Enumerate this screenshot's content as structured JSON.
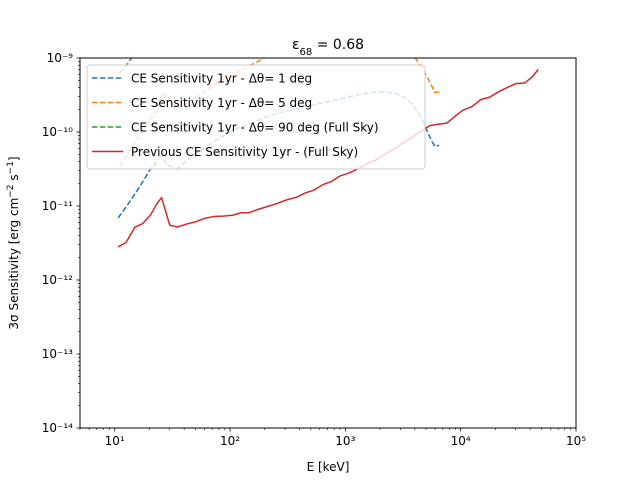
{
  "chart_data": {
    "type": "line",
    "title": "ε68 = 0.68",
    "xlabel": "E [keV]",
    "ylabel": "3σ Sensitivity [erg cm⁻² s⁻¹]",
    "xscale": "log",
    "yscale": "log",
    "xlim": [
      5,
      100000
    ],
    "ylim": [
      1e-14,
      1e-09
    ],
    "x_ticks": [
      {
        "value": 10,
        "label": "10¹"
      },
      {
        "value": 100,
        "label": "10²"
      },
      {
        "value": 1000,
        "label": "10³"
      },
      {
        "value": 10000,
        "label": "10⁴"
      },
      {
        "value": 100000,
        "label": "10⁵"
      }
    ],
    "y_ticks": [
      {
        "value": 1e-14,
        "label": "10⁻¹⁴"
      },
      {
        "value": 1e-13,
        "label": "10⁻¹³"
      },
      {
        "value": 1e-12,
        "label": "10⁻¹²"
      },
      {
        "value": 1e-11,
        "label": "10⁻¹¹"
      },
      {
        "value": 1e-10,
        "label": "10⁻¹⁰"
      },
      {
        "value": 1e-09,
        "label": "10⁻⁹"
      }
    ],
    "grid": false,
    "legend_position": "top-left",
    "series": [
      {
        "name": "CE Sensitivity 1yr - Δθ= 1 deg",
        "color": "#1f77b4",
        "style": "dashed",
        "points": [
          [
            10.7,
            6.9e-12
          ],
          [
            13,
            1.05e-11
          ],
          [
            16,
            1.7e-11
          ],
          [
            20,
            3e-11
          ],
          [
            25,
            4.7e-11
          ],
          [
            29,
            3.5e-11
          ],
          [
            35,
            3.2e-11
          ],
          [
            45,
            4.4e-11
          ],
          [
            60,
            6.2e-11
          ],
          [
            80,
            8.2e-11
          ],
          [
            110,
            1.08e-10
          ],
          [
            150,
            1.3e-10
          ],
          [
            200,
            1.58e-10
          ],
          [
            300,
            1.9e-10
          ],
          [
            450,
            2.22e-10
          ],
          [
            650,
            2.5e-10
          ],
          [
            900,
            2.8e-10
          ],
          [
            1200,
            3.1e-10
          ],
          [
            1600,
            3.4e-10
          ],
          [
            2000,
            3.5e-10
          ],
          [
            2600,
            3.4e-10
          ],
          [
            3200,
            3e-10
          ],
          [
            3900,
            2.3e-10
          ],
          [
            4500,
            1.6e-10
          ],
          [
            5100,
            1.05e-10
          ],
          [
            5600,
            7.5e-11
          ],
          [
            6000,
            6.4e-11
          ],
          [
            6500,
            6.6e-11
          ]
        ]
      },
      {
        "name": "CE Sensitivity 1yr - Δθ= 5 deg",
        "color": "#ff7f0e",
        "style": "dashed",
        "points": [
          [
            11,
            3.4e-11
          ],
          [
            14,
            6e-11
          ],
          [
            18,
            1.1e-10
          ],
          [
            23,
            2e-10
          ],
          [
            26.5,
            3.4e-10
          ],
          [
            30,
            2.5e-10
          ],
          [
            38,
            2.2e-10
          ],
          [
            55,
            3.2e-10
          ],
          [
            80,
            4.8e-10
          ],
          [
            120,
            6.7e-10
          ],
          [
            170,
            8.8e-10
          ],
          [
            210,
            1.05e-09
          ]
        ],
        "points_right": [
          [
            4000,
            1.02e-09
          ],
          [
            4600,
            7.5e-10
          ],
          [
            5300,
            5e-10
          ],
          [
            6000,
            3.4e-10
          ],
          [
            6500,
            3.5e-10
          ]
        ]
      },
      {
        "name": "CE Sensitivity 1yr - Δθ= 90 deg (Full Sky)",
        "color": "#2ca02c",
        "style": "dashed",
        "points": [
          [
            11,
            6.2e-10
          ],
          [
            12.5,
            7.8e-10
          ],
          [
            14.2,
            1.03e-09
          ]
        ]
      },
      {
        "name": "Previous CE Sensitivity 1yr - (Full Sky)",
        "color": "#d62728",
        "style": "solid",
        "points": [
          [
            10.7,
            2.8e-12
          ],
          [
            12.5,
            3.2e-12
          ],
          [
            15,
            5.2e-12
          ],
          [
            17.5,
            5.8e-12
          ],
          [
            20.5,
            7.6e-12
          ],
          [
            23,
            1.05e-11
          ],
          [
            25.5,
            1.3e-11
          ],
          [
            30,
            5.5e-12
          ],
          [
            35,
            5.2e-12
          ],
          [
            42,
            5.7e-12
          ],
          [
            50,
            6.1e-12
          ],
          [
            60,
            6.8e-12
          ],
          [
            72,
            7.2e-12
          ],
          [
            87,
            7.3e-12
          ],
          [
            105,
            7.5e-12
          ],
          [
            125,
            8.1e-12
          ],
          [
            145,
            8.1e-12
          ],
          [
            175,
            9e-12
          ],
          [
            210,
            9.8e-12
          ],
          [
            260,
            1.09e-11
          ],
          [
            310,
            1.21e-11
          ],
          [
            380,
            1.32e-11
          ],
          [
            450,
            1.5e-11
          ],
          [
            540,
            1.65e-11
          ],
          [
            640,
            1.95e-11
          ],
          [
            760,
            2.15e-11
          ],
          [
            900,
            2.55e-11
          ],
          [
            1080,
            2.8e-11
          ],
          [
            1300,
            3.2e-11
          ],
          [
            1550,
            3.75e-11
          ],
          [
            1850,
            4.2e-11
          ],
          [
            2200,
            5e-11
          ],
          [
            2650,
            5.9e-11
          ],
          [
            3150,
            7.1e-11
          ],
          [
            3800,
            8.5e-11
          ],
          [
            4500,
            1.02e-10
          ],
          [
            5400,
            1.22e-10
          ],
          [
            6500,
            1.28e-10
          ],
          [
            7600,
            1.32e-10
          ],
          [
            9000,
            1.65e-10
          ],
          [
            10500,
            1.98e-10
          ],
          [
            12500,
            2.2e-10
          ],
          [
            15000,
            2.75e-10
          ],
          [
            17800,
            2.95e-10
          ],
          [
            21000,
            3.45e-10
          ],
          [
            25000,
            3.95e-10
          ],
          [
            30000,
            4.5e-10
          ],
          [
            36000,
            4.6e-10
          ],
          [
            42000,
            5.6e-10
          ],
          [
            47000,
            7e-10
          ]
        ]
      }
    ]
  }
}
